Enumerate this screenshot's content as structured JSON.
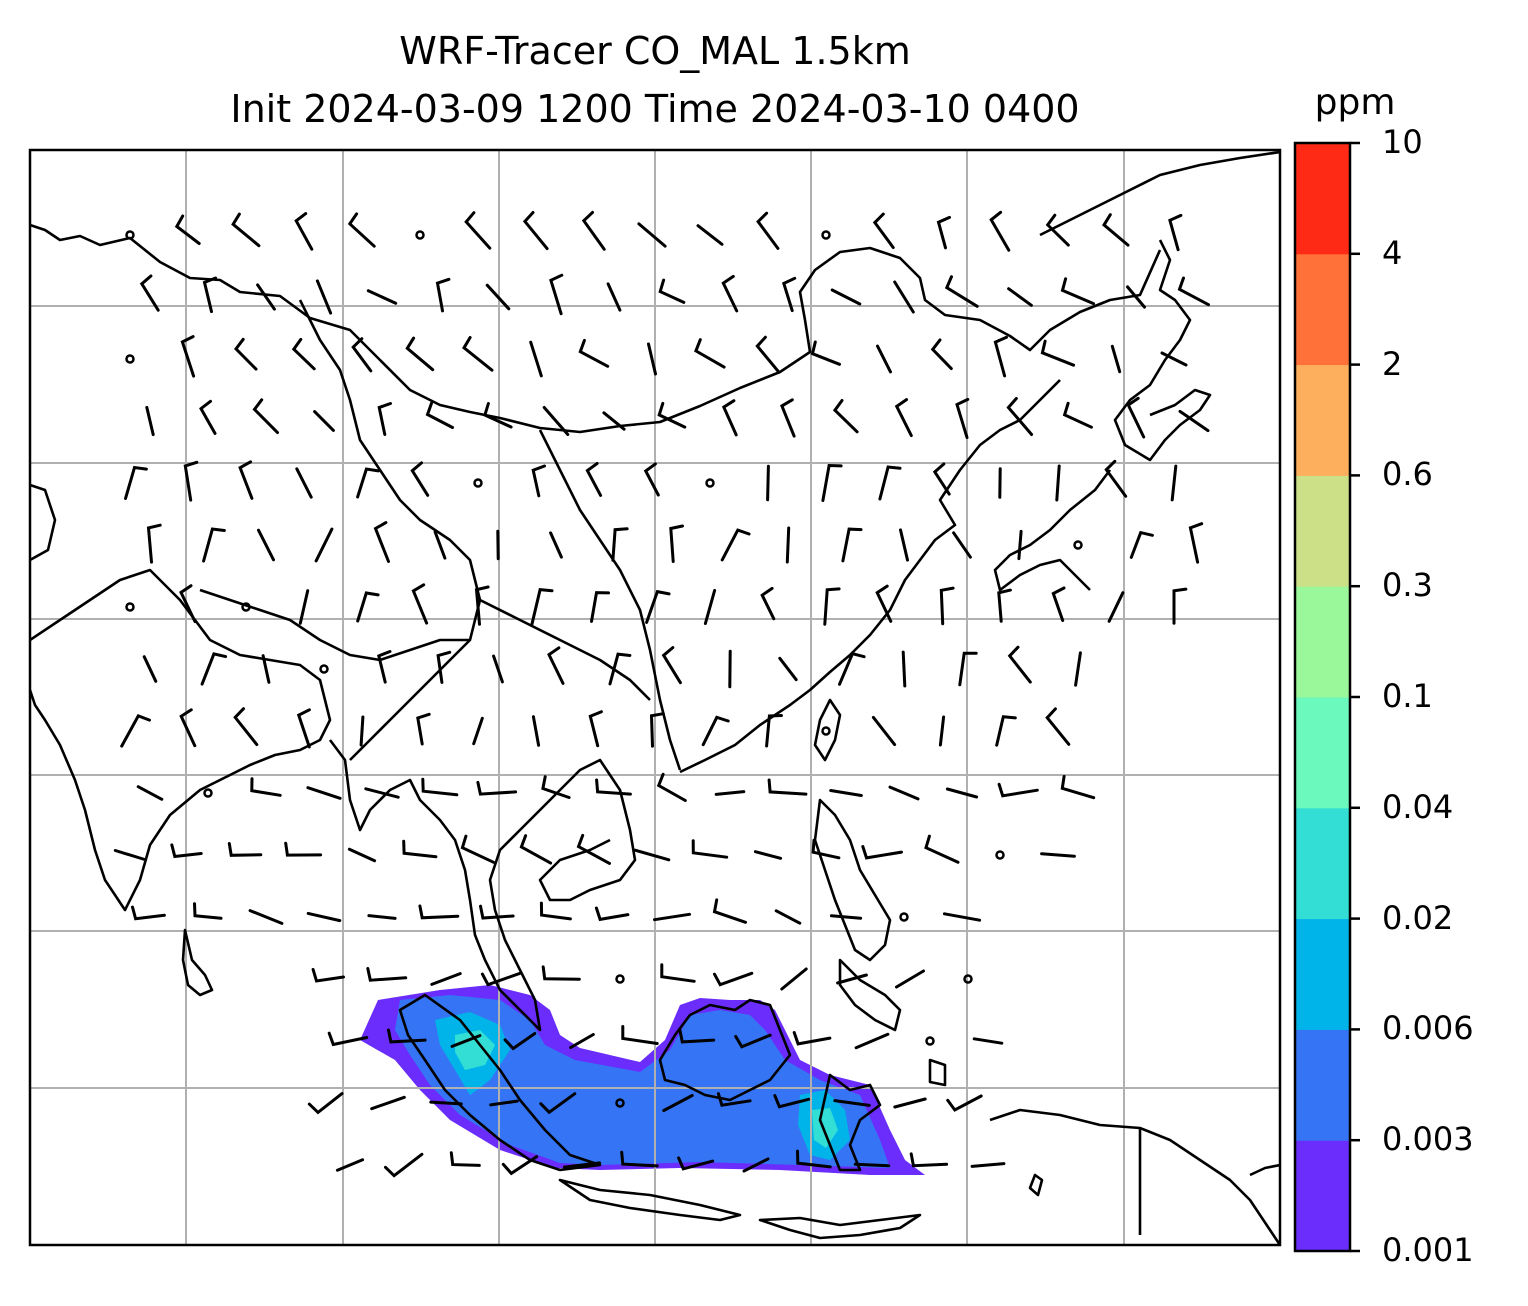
{
  "title": {
    "line1": "WRF-Tracer CO_MAL 1.5km",
    "line2": "Init 2024-03-09 1200 Time 2024-03-10 0400"
  },
  "colorbar": {
    "units": "ppm",
    "levels": [
      "0.001",
      "0.003",
      "0.006",
      "0.02",
      "0.04",
      "0.1",
      "0.3",
      "0.6",
      "2",
      "4",
      "10"
    ],
    "colors": [
      "#6a2dfb",
      "#3575f5",
      "#00b4ea",
      "#33dfd4",
      "#6cf9be",
      "#9af79a",
      "#cce187",
      "#fdaf5e",
      "#ff7138",
      "#ff2a15"
    ]
  },
  "map": {
    "gridlines": true,
    "features": [
      "coastlines",
      "country-borders",
      "wind-barbs",
      "tracer-concentration"
    ]
  }
}
